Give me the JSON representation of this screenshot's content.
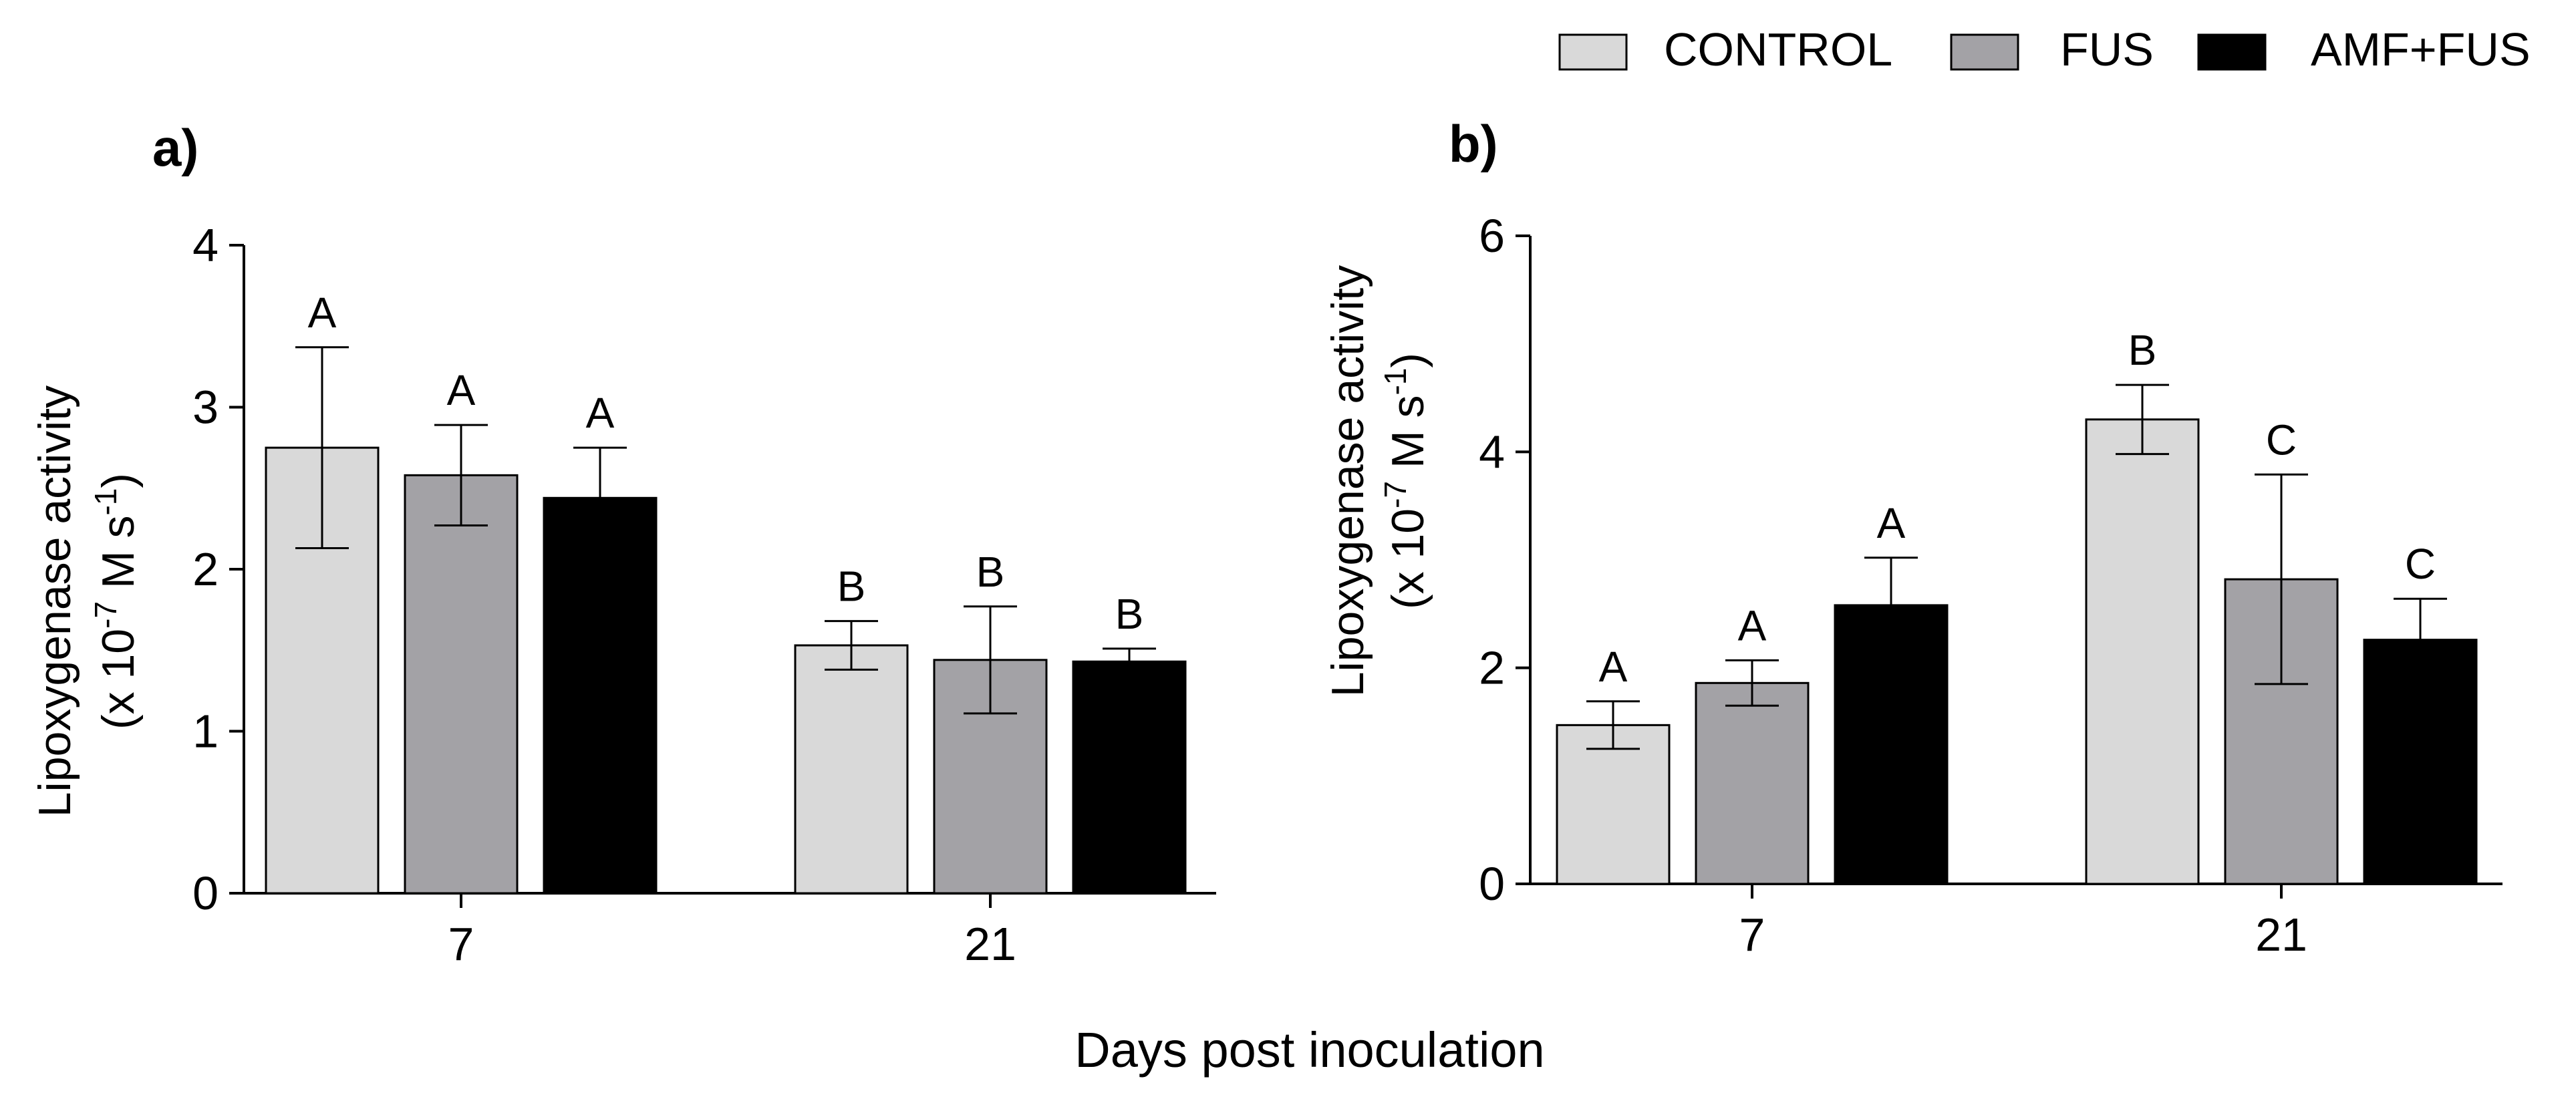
{
  "legend": {
    "placement": "top-right",
    "items": [
      {
        "label": "CONTROL",
        "color": "#d9d9d9"
      },
      {
        "label": "FUS",
        "color": "#a3a2a6"
      },
      {
        "label": "AMF+FUS",
        "color": "#000000"
      }
    ]
  },
  "shared_xlabel": "Days post inoculation",
  "chart_data": [
    {
      "panel": "a)",
      "type": "bar",
      "categories": [
        "7",
        "21"
      ],
      "ylabel_line1": "Lipoxygenase activity",
      "ylabel_line2": {
        "prefix": "(x 10",
        "exp": "-7",
        "middle": " M s",
        "exp2": "-1",
        "suffix": ")"
      },
      "ylim": [
        0,
        4
      ],
      "yticks": [
        0,
        1,
        2,
        3,
        4
      ],
      "series": [
        {
          "name": "CONTROL",
          "values": [
            2.75,
            1.53
          ],
          "errors": [
            0.62,
            0.15
          ],
          "letters": [
            "A",
            "B"
          ]
        },
        {
          "name": "FUS",
          "values": [
            2.58,
            1.44
          ],
          "errors": [
            0.31,
            0.33
          ],
          "letters": [
            "A",
            "B"
          ]
        },
        {
          "name": "AMF+FUS",
          "values": [
            2.44,
            1.43
          ],
          "errors": [
            0.31,
            0.08
          ],
          "letters": [
            "A",
            "B"
          ]
        }
      ]
    },
    {
      "panel": "b)",
      "type": "bar",
      "categories": [
        "7",
        "21"
      ],
      "ylabel_line1": "Lipoxygenase activity",
      "ylabel_line2": {
        "prefix": "(x 10",
        "exp": "-7",
        "middle": " M s",
        "exp2": "-1",
        "suffix": ")"
      },
      "ylim": [
        0,
        6
      ],
      "yticks": [
        0,
        2,
        4,
        6
      ],
      "series": [
        {
          "name": "CONTROL",
          "values": [
            1.47,
            4.3
          ],
          "errors": [
            0.22,
            0.32
          ],
          "letters": [
            "A",
            "B"
          ]
        },
        {
          "name": "FUS",
          "values": [
            1.86,
            2.82
          ],
          "errors": [
            0.21,
            0.97
          ],
          "letters": [
            "A",
            "C"
          ]
        },
        {
          "name": "AMF+FUS",
          "values": [
            2.58,
            2.26
          ],
          "errors": [
            0.44,
            0.38
          ],
          "letters": [
            "A",
            "C"
          ]
        }
      ]
    }
  ]
}
